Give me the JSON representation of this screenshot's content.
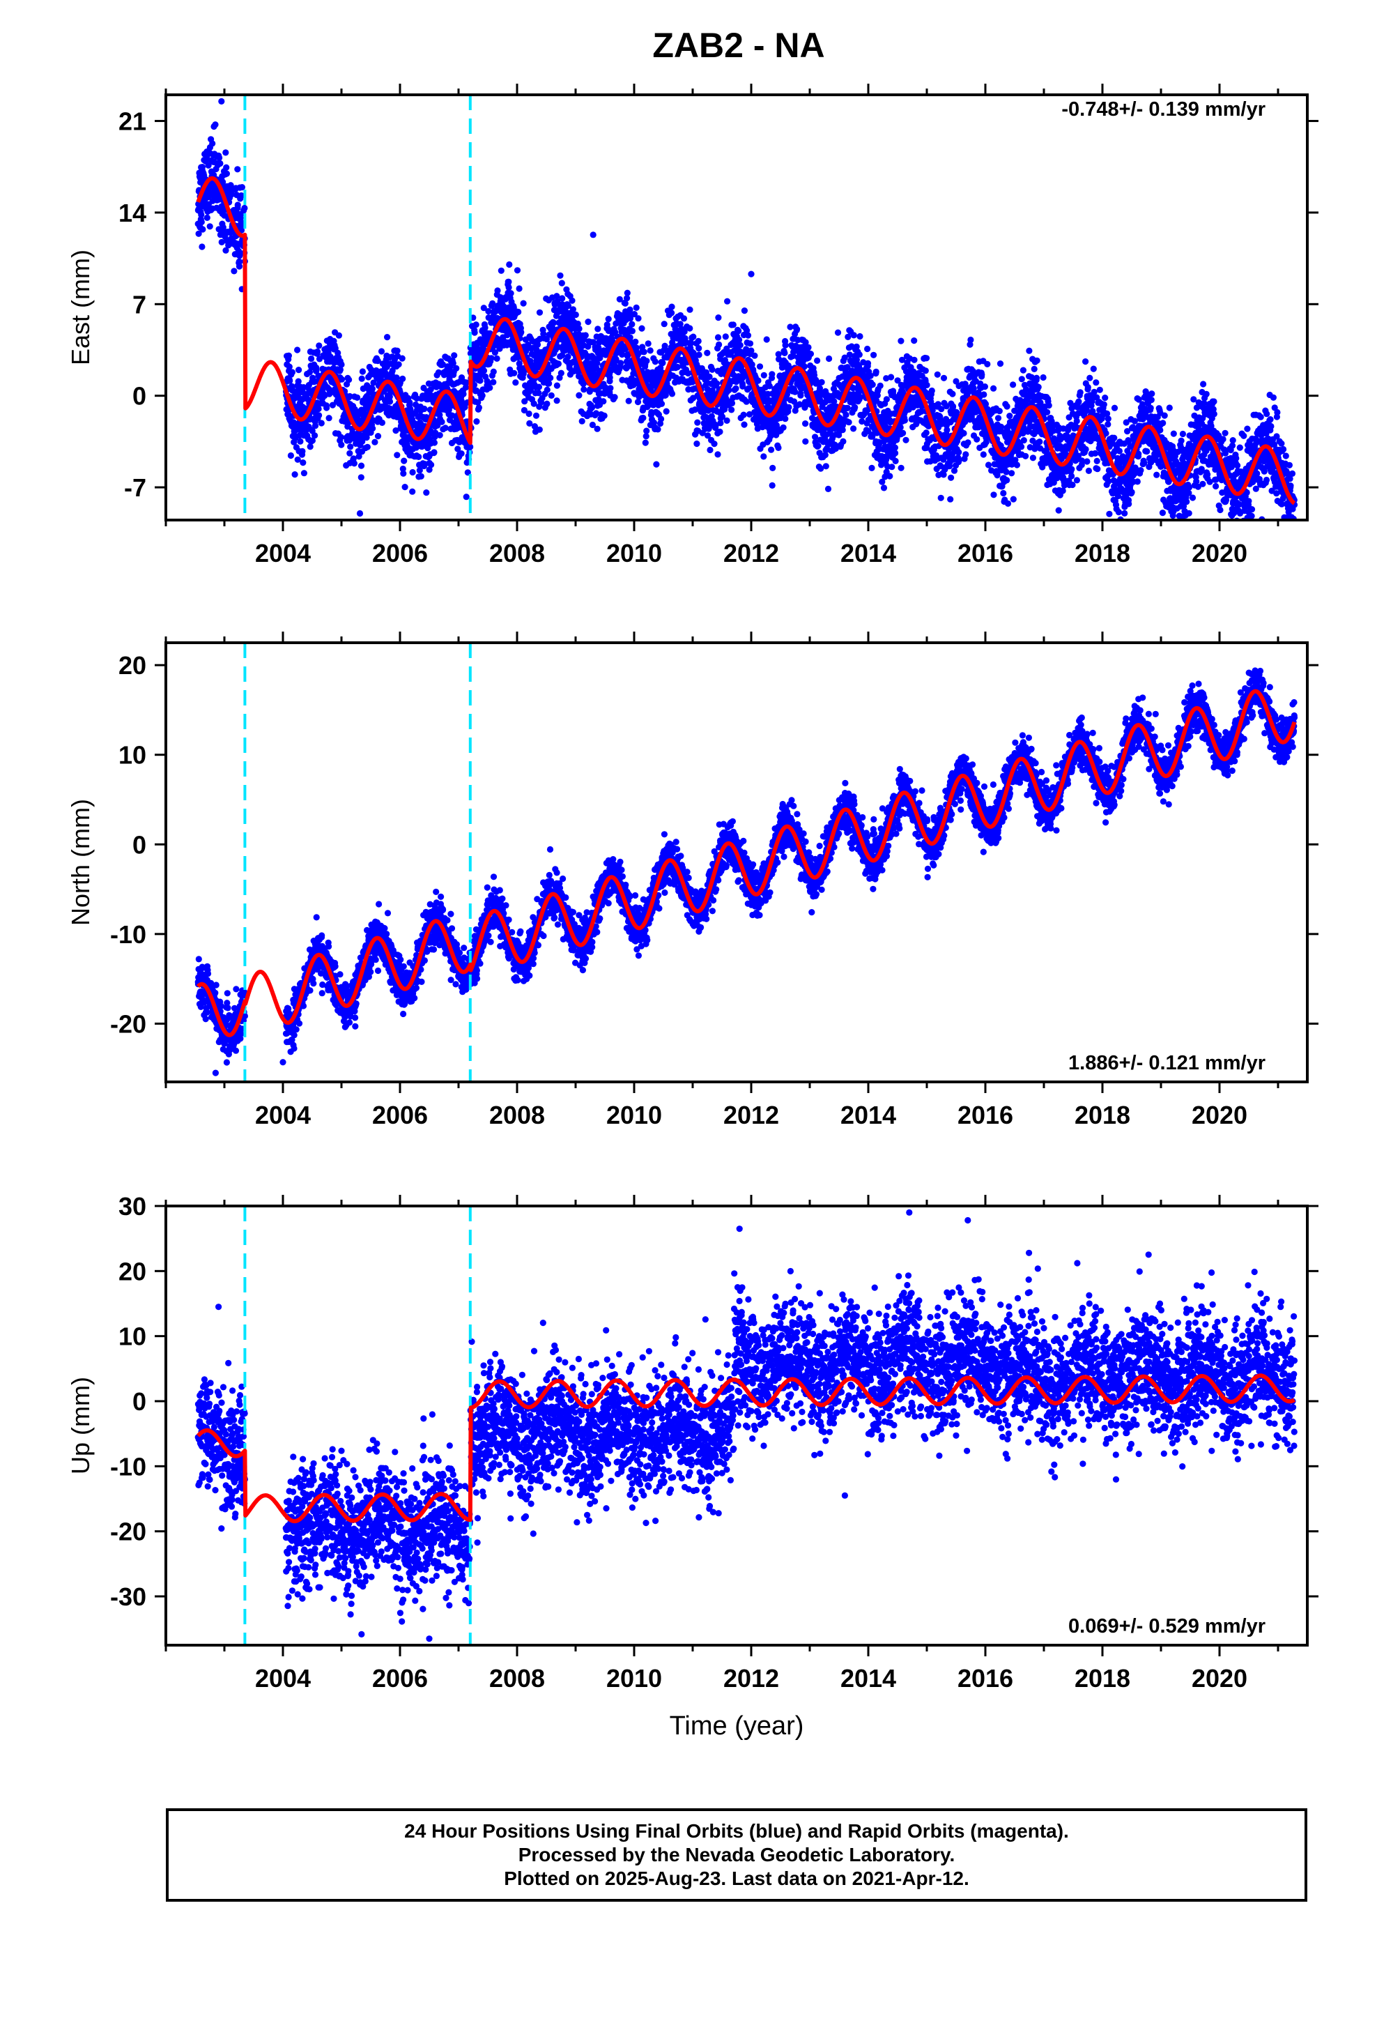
{
  "title": "ZAB2 - NA",
  "footer": {
    "line1": "24 Hour Positions Using Final Orbits (blue) and Rapid Orbits (magenta).",
    "line2": "Processed by the Nevada Geodetic Laboratory.",
    "line3": "Plotted on 2025-Aug-23. Last data on 2021-Apr-12."
  },
  "colors": {
    "data": "#0000ff",
    "model": "#ff0000",
    "steps": "#00e5ff",
    "axes": "#000000"
  },
  "chart_data": [
    {
      "type": "scatter",
      "name": "east",
      "ylabel": "East (mm)",
      "xlabel": "",
      "rate_label": "-0.748+/- 0.139 mm/yr",
      "rate_position": "top-right",
      "xlim": [
        2002.0,
        2021.5
      ],
      "ylim": [
        -9.5,
        23.0
      ],
      "xticks": [
        2004,
        2006,
        2008,
        2010,
        2012,
        2014,
        2016,
        2018,
        2020
      ],
      "yticks": [
        -7,
        0,
        7,
        14,
        21
      ],
      "step_epochs": [
        2003.35,
        2007.2
      ],
      "data_start": 2002.55,
      "data_end": 2021.28,
      "model": {
        "rate": -0.748,
        "annual_amplitude": 2.0,
        "annual_phase": 0.55,
        "segments": [
          {
            "start": 2002.55,
            "end": 2003.35,
            "offset": 14.8,
            "ref": 2002.55
          },
          {
            "start": 2003.35,
            "end": 2007.2,
            "offset": 0.9,
            "ref": 2003.35
          },
          {
            "start": 2007.2,
            "end": 2021.28,
            "offset": 4.3,
            "ref": 2007.2
          }
        ]
      },
      "scatter_noise": 1.6,
      "outliers": [
        {
          "x": 2002.95,
          "y": 22.5
        },
        {
          "x": 2009.3,
          "y": 12.3
        },
        {
          "x": 2012.0,
          "y": 9.3
        },
        {
          "x": 2006.45,
          "y": -7.4
        }
      ],
      "grid": false
    },
    {
      "type": "scatter",
      "name": "north",
      "ylabel": "North (mm)",
      "xlabel": "",
      "rate_label": "1.886+/- 0.121 mm/yr",
      "rate_position": "bottom-right",
      "xlim": [
        2002.0,
        2021.5
      ],
      "ylim": [
        -26.5,
        22.5
      ],
      "xticks": [
        2004,
        2006,
        2008,
        2010,
        2012,
        2014,
        2016,
        2018,
        2020
      ],
      "yticks": [
        -20,
        -10,
        0,
        10,
        20
      ],
      "step_epochs": [
        2003.35,
        2007.2
      ],
      "data_start": 2002.55,
      "data_end": 2021.28,
      "model": {
        "rate": 1.886,
        "annual_amplitude": 3.3,
        "annual_phase": 0.35,
        "segments": [
          {
            "start": 2002.55,
            "end": 2003.35,
            "offset": -19.0,
            "ref": 2002.55
          },
          {
            "start": 2003.35,
            "end": 2007.2,
            "offset": -18.0,
            "ref": 2003.35
          },
          {
            "start": 2007.2,
            "end": 2021.28,
            "offset": -11.5,
            "ref": 2007.2
          }
        ]
      },
      "scatter_noise": 1.2,
      "outliers": [
        {
          "x": 2004.0,
          "y": -24.3
        },
        {
          "x": 2002.85,
          "y": -25.5
        }
      ],
      "grid": false
    },
    {
      "type": "scatter",
      "name": "up",
      "ylabel": "Up (mm)",
      "xlabel": "Time (year)",
      "rate_label": "0.069+/- 0.529 mm/yr",
      "rate_position": "bottom-right",
      "xlim": [
        2002.0,
        2021.5
      ],
      "ylim": [
        -37.5,
        30.0
      ],
      "xticks": [
        2004,
        2006,
        2008,
        2010,
        2012,
        2014,
        2016,
        2018,
        2020
      ],
      "yticks": [
        -30,
        -20,
        -10,
        0,
        10,
        20,
        30
      ],
      "step_epochs": [
        2003.35,
        2007.2
      ],
      "data_start": 2002.55,
      "data_end": 2021.28,
      "model": {
        "rate": 0.069,
        "annual_amplitude": 2.0,
        "annual_phase": 0.45,
        "segments": [
          {
            "start": 2002.55,
            "end": 2003.35,
            "offset": -6.5,
            "ref": 2002.55
          },
          {
            "start": 2003.35,
            "end": 2007.2,
            "offset": -16.5,
            "ref": 2003.35
          },
          {
            "start": 2007.2,
            "end": 2021.28,
            "offset": 1.0,
            "ref": 2007.2
          }
        ]
      },
      "scatter_noise": 4.5,
      "extra_level": [
        {
          "start": 2004.0,
          "end": 2007.2,
          "shift": -3.0
        },
        {
          "start": 2007.2,
          "end": 2011.7,
          "shift": -6.0
        },
        {
          "start": 2011.7,
          "end": 2016.5,
          "shift": 4.0
        },
        {
          "start": 2016.5,
          "end": 2021.28,
          "shift": 2.0
        }
      ],
      "outliers": [
        {
          "x": 2014.7,
          "y": 29.0
        },
        {
          "x": 2011.8,
          "y": 26.5
        },
        {
          "x": 2015.7,
          "y": 27.8
        },
        {
          "x": 2006.5,
          "y": -36.5
        },
        {
          "x": 2013.6,
          "y": -14.5
        },
        {
          "x": 2002.9,
          "y": 14.5
        }
      ],
      "grid": false
    }
  ]
}
